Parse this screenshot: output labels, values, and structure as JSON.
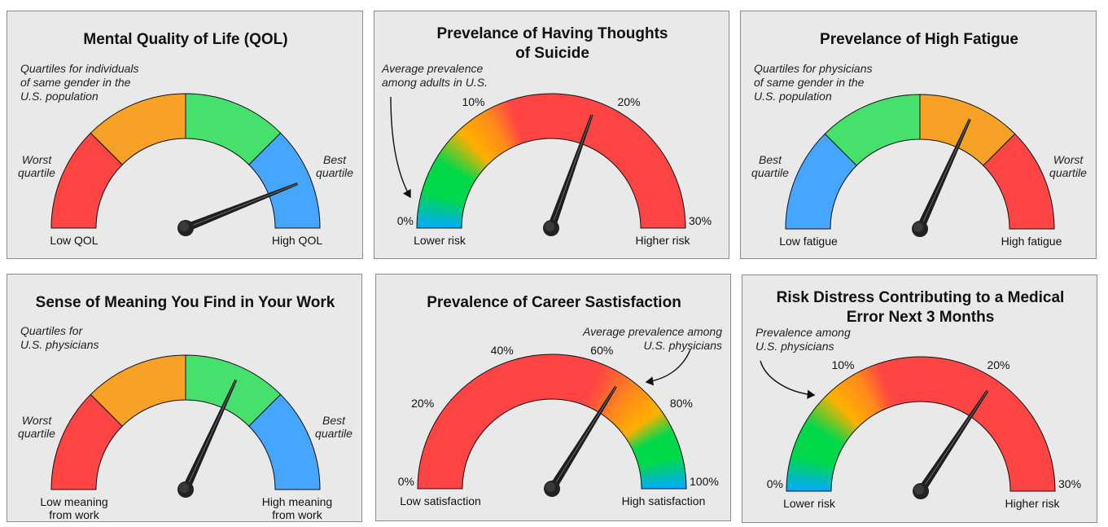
{
  "colors": {
    "panel_bg": "#e9e9e9",
    "red": "#ff4444",
    "orange": "#f7a126",
    "green": "#46e06c",
    "blue": "#46a5ff",
    "grad_blue": "#00aaff",
    "grad_green": "#00d84a",
    "grad_yellow": "#ffb000",
    "grad_orange": "#ff8a1a"
  },
  "chart_data": [
    {
      "type": "gauge",
      "id": "qol",
      "title": [
        "Mental Quality of Life (QOL)"
      ],
      "style": "quartiles",
      "segments": [
        {
          "label": "Q1",
          "color": "#ff4444"
        },
        {
          "label": "Q2",
          "color": "#f7a126"
        },
        {
          "label": "Q3",
          "color": "#46e06c"
        },
        {
          "label": "Q4",
          "color": "#46a5ff"
        }
      ],
      "note": [
        "Quartiles for individuals",
        "of same gender in the",
        "U.S. population"
      ],
      "left_side_label": [
        "Worst",
        "quartile"
      ],
      "right_side_label": [
        "Best",
        "quartile"
      ],
      "min_label": [
        "Low QOL"
      ],
      "max_label": [
        "High QOL"
      ],
      "needle_fraction": 0.88
    },
    {
      "type": "gauge",
      "id": "suicide",
      "title": [
        "Prevelance of Having Thoughts",
        "of Suicide"
      ],
      "style": "gradient-low-good",
      "range": [
        0,
        30
      ],
      "unit": "%",
      "ticks": [
        {
          "value": 0,
          "label": "0%"
        },
        {
          "value": 10,
          "label": "10%"
        },
        {
          "value": 20,
          "label": "20%"
        },
        {
          "value": 30,
          "label": "30%"
        }
      ],
      "note": [
        "Average prevalence",
        "among adults in U.S."
      ],
      "annotation_value": 0,
      "min_label": [
        "Lower risk"
      ],
      "max_label": [
        "Higher risk"
      ],
      "needle_value": 18.3
    },
    {
      "type": "gauge",
      "id": "fatigue",
      "title": [
        "Prevelance of High Fatigue"
      ],
      "style": "quartiles",
      "segments": [
        {
          "label": "Q1",
          "color": "#46a5ff"
        },
        {
          "label": "Q2",
          "color": "#46e06c"
        },
        {
          "label": "Q3",
          "color": "#f7a126"
        },
        {
          "label": "Q4",
          "color": "#ff4444"
        }
      ],
      "note": [
        "Quartiles for physicians",
        "of same gender in the",
        "U.S. population"
      ],
      "left_side_label": [
        "Best",
        "quartile"
      ],
      "right_side_label": [
        "Worst",
        "quartile"
      ],
      "min_label": [
        "Low fatigue"
      ],
      "max_label": [
        "High fatigue"
      ],
      "needle_fraction": 0.636
    },
    {
      "type": "gauge",
      "id": "meaning",
      "title": [
        "Sense of Meaning You Find in Your Work"
      ],
      "style": "quartiles",
      "segments": [
        {
          "label": "Q1",
          "color": "#ff4444"
        },
        {
          "label": "Q2",
          "color": "#f7a126"
        },
        {
          "label": "Q3",
          "color": "#46e06c"
        },
        {
          "label": "Q4",
          "color": "#46a5ff"
        }
      ],
      "note": [
        "Quartiles for",
        "U.S. physicians"
      ],
      "left_side_label": [
        "Worst",
        "quartile"
      ],
      "right_side_label": [
        "Best",
        "quartile"
      ],
      "min_label": [
        "Low meaning",
        "from work"
      ],
      "max_label": [
        "High meaning",
        "from work"
      ],
      "needle_fraction": 0.637
    },
    {
      "type": "gauge",
      "id": "career",
      "title": [
        "Prevalence of Career Sastisfaction"
      ],
      "style": "gradient-high-good",
      "range": [
        0,
        100
      ],
      "unit": "%",
      "ticks": [
        {
          "value": 0,
          "label": "0%"
        },
        {
          "value": 20,
          "label": "20%"
        },
        {
          "value": 40,
          "label": "40%"
        },
        {
          "value": 60,
          "label": "60%"
        },
        {
          "value": 80,
          "label": "80%"
        },
        {
          "value": 100,
          "label": "100%"
        }
      ],
      "note": [
        "Average prevalence among",
        "U.S. physicians"
      ],
      "annotation_value": 70,
      "min_label": [
        "Low satisfaction"
      ],
      "max_label": [
        "High satisfaction"
      ],
      "needle_value": 67.8
    },
    {
      "type": "gauge",
      "id": "error",
      "title": [
        "Risk Distress Contributing to a Medical",
        "Error Next 3 Months"
      ],
      "style": "gradient-low-good",
      "range": [
        0,
        30
      ],
      "unit": "%",
      "ticks": [
        {
          "value": 0,
          "label": "0%"
        },
        {
          "value": 10,
          "label": "10%"
        },
        {
          "value": 20,
          "label": "20%"
        },
        {
          "value": 30,
          "label": "30%"
        }
      ],
      "note": [
        "Prevalence among",
        "U.S. physicians"
      ],
      "annotation_value": 6,
      "min_label": [
        "Lower risk"
      ],
      "max_label": [
        "Higher risk"
      ],
      "needle_value": 20.6
    }
  ]
}
